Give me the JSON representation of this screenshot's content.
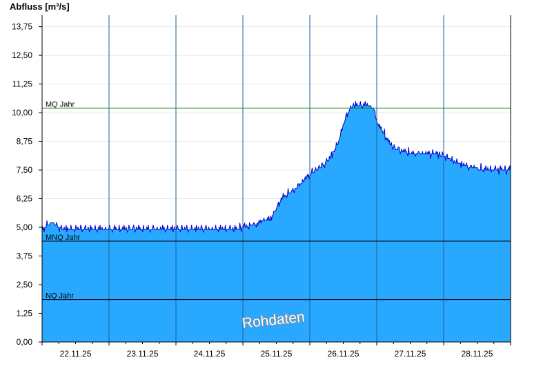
{
  "chart_data": {
    "type": "area",
    "ylabel": "Abfluss [m³/s]",
    "ylim": [
      0,
      14.25
    ],
    "yticks": [
      "0,00",
      "1,25",
      "2,50",
      "3,75",
      "5,00",
      "6,25",
      "7,50",
      "8,75",
      "10,00",
      "11,25",
      "12,50",
      "13,75"
    ],
    "ytick_values": [
      0,
      1.25,
      2.5,
      3.75,
      5.0,
      6.25,
      7.5,
      8.75,
      10.0,
      11.25,
      12.5,
      13.75
    ],
    "xlim": [
      0,
      7
    ],
    "xticks": [
      "22.11.25",
      "23.11.25",
      "24.11.25",
      "25.11.25",
      "26.11.25",
      "27.11.25",
      "28.11.25"
    ],
    "grid": true,
    "colors": {
      "fill": "#29a8ff",
      "line": "#0000cc",
      "mq": "#007700",
      "ref": "#000000"
    },
    "reference_lines": [
      {
        "label": "MQ Jahr",
        "value": 10.2
      },
      {
        "label": "MNQ Jahr",
        "value": 4.4
      },
      {
        "label": "NQ Jahr",
        "value": 1.85
      }
    ],
    "annotation": "Rohdaten",
    "series": [
      {
        "x": [
          0,
          0.15,
          0.3,
          0.5,
          0.7,
          0.9,
          1.0,
          1.2,
          1.5,
          1.8,
          2.0,
          2.2,
          2.5,
          2.7,
          2.9,
          3.0,
          3.2,
          3.3,
          3.4,
          3.45,
          3.5,
          3.6,
          3.7,
          3.8,
          3.9,
          4.0,
          4.1,
          4.2,
          4.3,
          4.4,
          4.5,
          4.55,
          4.65,
          4.75,
          4.85,
          4.95,
          5.0,
          5.1,
          5.2,
          5.3,
          5.5,
          5.7,
          5.9,
          6.0,
          6.2,
          6.4,
          6.6,
          6.8,
          7.0
        ],
        "y": [
          4.9,
          5.2,
          4.9,
          4.9,
          4.9,
          4.9,
          4.9,
          4.9,
          4.9,
          4.9,
          4.9,
          4.9,
          4.9,
          4.9,
          4.9,
          5.0,
          5.1,
          5.3,
          5.3,
          5.5,
          5.8,
          6.3,
          6.5,
          6.7,
          7.0,
          7.3,
          7.5,
          7.7,
          8.0,
          8.5,
          9.4,
          9.9,
          10.3,
          10.3,
          10.3,
          10.2,
          9.6,
          9.1,
          8.6,
          8.4,
          8.2,
          8.2,
          8.2,
          8.1,
          7.8,
          7.6,
          7.5,
          7.5,
          7.5
        ]
      }
    ]
  }
}
